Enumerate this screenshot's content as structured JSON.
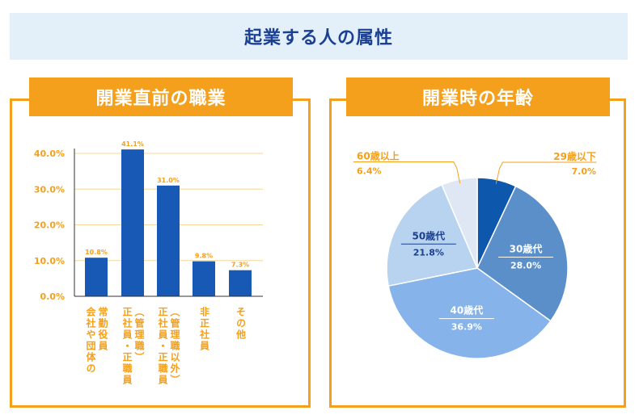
{
  "title": "起業する人の属性",
  "left_panel": {
    "title": "開業直前の職業"
  },
  "right_panel": {
    "title": "開業時の年齢"
  },
  "chart_data": [
    {
      "type": "bar",
      "categories": [
        [
          "会社や団体の",
          "常勤役員"
        ],
        [
          "正社員・正職員",
          "（管理職）"
        ],
        [
          "正社員・正職員",
          "（管理職以外）"
        ],
        [
          "非正社員"
        ],
        [
          "その他"
        ]
      ],
      "values": [
        10.8,
        41.1,
        31.0,
        9.8,
        7.3
      ],
      "value_labels": [
        "10.8%",
        "41.1%",
        "31.0%",
        "9.8%",
        "7.3%"
      ],
      "yticks": [
        "0.0%",
        "10.0%",
        "20.0%",
        "30.0%",
        "40.0%"
      ],
      "ylim": [
        0,
        40
      ],
      "grid": true,
      "colors": {
        "bar": "#1759b5",
        "axis_text": "#f4a01c",
        "grid": "#f4d79b"
      }
    },
    {
      "type": "pie",
      "slices": [
        {
          "label": "29歳以下",
          "value": 7.0,
          "value_label": "7.0%",
          "color": "#0d57ad"
        },
        {
          "label": "30歳代",
          "value": 28.0,
          "value_label": "28.0%",
          "color": "#5b8fc9"
        },
        {
          "label": "40歳代",
          "value": 36.9,
          "value_label": "36.9%",
          "color": "#86b3ea"
        },
        {
          "label": "50歳代",
          "value": 21.8,
          "value_label": "21.8%",
          "color": "#b7d3f0"
        },
        {
          "label": "60歳以上",
          "value": 6.4,
          "value_label": "6.4%",
          "color": "#dfe7f5"
        }
      ],
      "start_angle_deg": 0,
      "direction": "clockwise"
    }
  ]
}
